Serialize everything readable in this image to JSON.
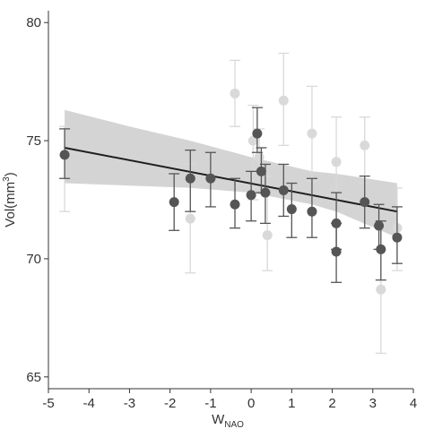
{
  "chart_data": {
    "type": "scatter",
    "xlabel": {
      "main": "W",
      "sub": "NAO"
    },
    "ylabel": {
      "main": "Vol(mm",
      "sup": "3",
      "close": ")"
    },
    "xlim": [
      -5,
      4
    ],
    "ylim": [
      64.5,
      80.5
    ],
    "xticks": [
      "-5",
      "-4",
      "-3",
      "-2",
      "-1",
      "0",
      "1",
      "2",
      "3",
      "4"
    ],
    "yticks": [
      "65",
      "70",
      "75",
      "80"
    ],
    "grid": false,
    "series": [
      {
        "color": "#d9d9d9",
        "points": [
          {
            "x": -4.6,
            "y": 74.4,
            "lo": 72.0,
            "hi": 75.6
          },
          {
            "x": -1.5,
            "y": 71.7,
            "lo": 69.4,
            "hi": 74.0
          },
          {
            "x": -0.4,
            "y": 77.0,
            "lo": 75.6,
            "hi": 78.4
          },
          {
            "x": 0.05,
            "y": 75.0,
            "lo": 72.5,
            "hi": 76.5
          },
          {
            "x": 0.2,
            "y": 74.3,
            "lo": 73.0,
            "hi": 75.5
          },
          {
            "x": 0.4,
            "y": 71.0,
            "lo": 69.5,
            "hi": 73.5
          },
          {
            "x": 0.8,
            "y": 76.7,
            "lo": 74.8,
            "hi": 78.7
          },
          {
            "x": 1.5,
            "y": 75.3,
            "lo": 73.3,
            "hi": 77.3
          },
          {
            "x": 2.1,
            "y": 74.1,
            "lo": 72.5,
            "hi": 76.0
          },
          {
            "x": 2.8,
            "y": 74.8,
            "lo": 73.2,
            "hi": 76.0
          },
          {
            "x": 3.2,
            "y": 68.7,
            "lo": 66.0,
            "hi": 71.5
          },
          {
            "x": 3.6,
            "y": 71.3,
            "lo": 69.5,
            "hi": 73.0
          }
        ]
      },
      {
        "color": "#555555",
        "points": [
          {
            "x": -4.6,
            "y": 74.4,
            "lo": 73.4,
            "hi": 75.5
          },
          {
            "x": -1.9,
            "y": 72.4,
            "lo": 71.2,
            "hi": 73.6
          },
          {
            "x": -1.5,
            "y": 73.4,
            "lo": 72.0,
            "hi": 74.6
          },
          {
            "x": -1.0,
            "y": 73.4,
            "lo": 72.2,
            "hi": 74.5
          },
          {
            "x": -0.4,
            "y": 72.3,
            "lo": 71.3,
            "hi": 73.4
          },
          {
            "x": 0.0,
            "y": 72.7,
            "lo": 71.6,
            "hi": 73.7
          },
          {
            "x": 0.15,
            "y": 75.3,
            "lo": 74.5,
            "hi": 76.4
          },
          {
            "x": 0.25,
            "y": 73.7,
            "lo": 72.8,
            "hi": 74.7
          },
          {
            "x": 0.35,
            "y": 72.8,
            "lo": 71.5,
            "hi": 74.0
          },
          {
            "x": 0.8,
            "y": 72.9,
            "lo": 71.8,
            "hi": 74.0
          },
          {
            "x": 1.0,
            "y": 72.1,
            "lo": 70.9,
            "hi": 73.2
          },
          {
            "x": 1.5,
            "y": 72.0,
            "lo": 70.9,
            "hi": 73.4
          },
          {
            "x": 2.1,
            "y": 71.5,
            "lo": 70.4,
            "hi": 72.8
          },
          {
            "x": 2.1,
            "y": 70.3,
            "lo": 69.0,
            "hi": 71.5
          },
          {
            "x": 2.8,
            "y": 72.4,
            "lo": 71.3,
            "hi": 73.5
          },
          {
            "x": 3.15,
            "y": 71.4,
            "lo": 70.4,
            "hi": 72.3
          },
          {
            "x": 3.2,
            "y": 70.4,
            "lo": 69.1,
            "hi": 71.6
          },
          {
            "x": 3.6,
            "y": 70.9,
            "lo": 69.8,
            "hi": 72.2
          }
        ]
      }
    ],
    "fit": {
      "line": {
        "x0": -4.6,
        "y0": 74.7,
        "x1": 3.6,
        "y1": 72.0,
        "color": "#1f1f1f"
      },
      "band": {
        "color": "#cccccc",
        "x": [
          -4.6,
          -3.0,
          -1.5,
          0.0,
          1.5,
          2.1,
          3.6
        ],
        "upper": [
          76.3,
          75.6,
          75.0,
          74.3,
          73.7,
          73.6,
          73.2
        ],
        "lower": [
          73.2,
          73.1,
          73.0,
          72.8,
          72.3,
          72.0,
          70.9
        ]
      }
    }
  }
}
